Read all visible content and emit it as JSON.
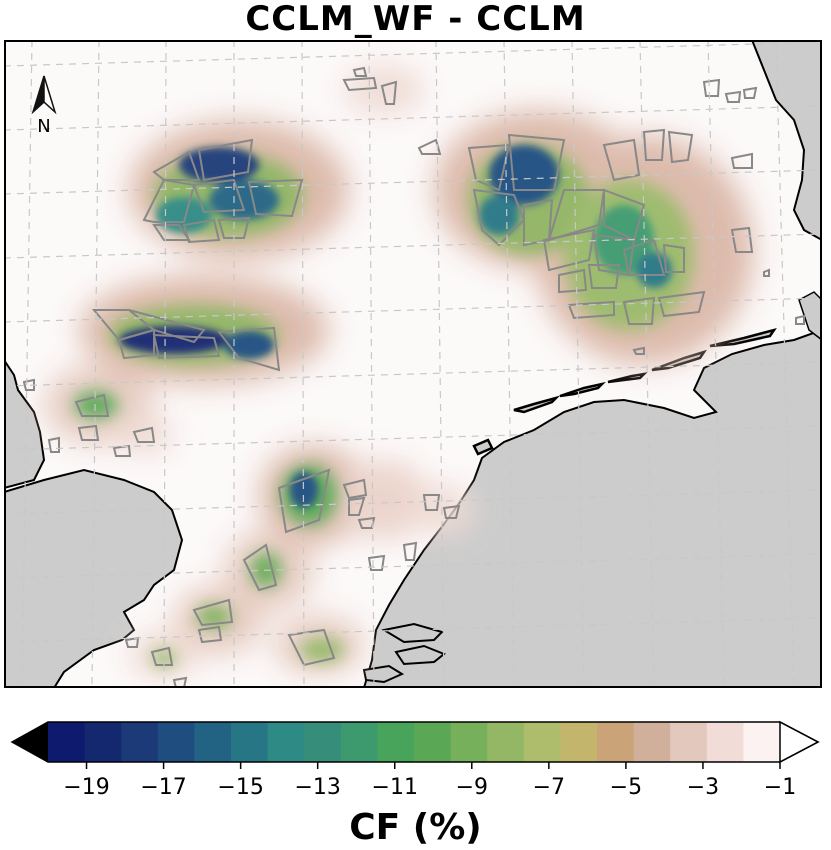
{
  "title": "CCLM_WF - CCLM",
  "north_arrow_label": "N",
  "colorbar": {
    "label": "CF (%)",
    "ticks": [
      "−19",
      "−17",
      "−15",
      "−13",
      "−11",
      "−9",
      "−7",
      "−5",
      "−3",
      "−1"
    ],
    "tick_values": [
      -19,
      -17,
      -15,
      -13,
      -11,
      -9,
      -7,
      -5,
      -3,
      -1
    ],
    "range": [
      -20,
      -1
    ],
    "extend": "both",
    "under_color": "#000000",
    "over_color": "#ffffff",
    "colors": [
      "#0d1a6e",
      "#14286f",
      "#1c3a78",
      "#1f4d80",
      "#226384",
      "#277686",
      "#2d8a84",
      "#358d7a",
      "#3d9a6e",
      "#48a45b",
      "#5aa855",
      "#77b05a",
      "#93b765",
      "#aebd6b",
      "#c4b56d",
      "#cba378",
      "#d1b09b",
      "#e2c8bd",
      "#f1dcd8",
      "#fbf2f1"
    ]
  },
  "map_colors": {
    "land": "#cccccc",
    "sea": "#fcf9f9",
    "coastline": "#000000",
    "wind_farm_outline": "#888888",
    "gridline": "#c8c8c8"
  }
}
